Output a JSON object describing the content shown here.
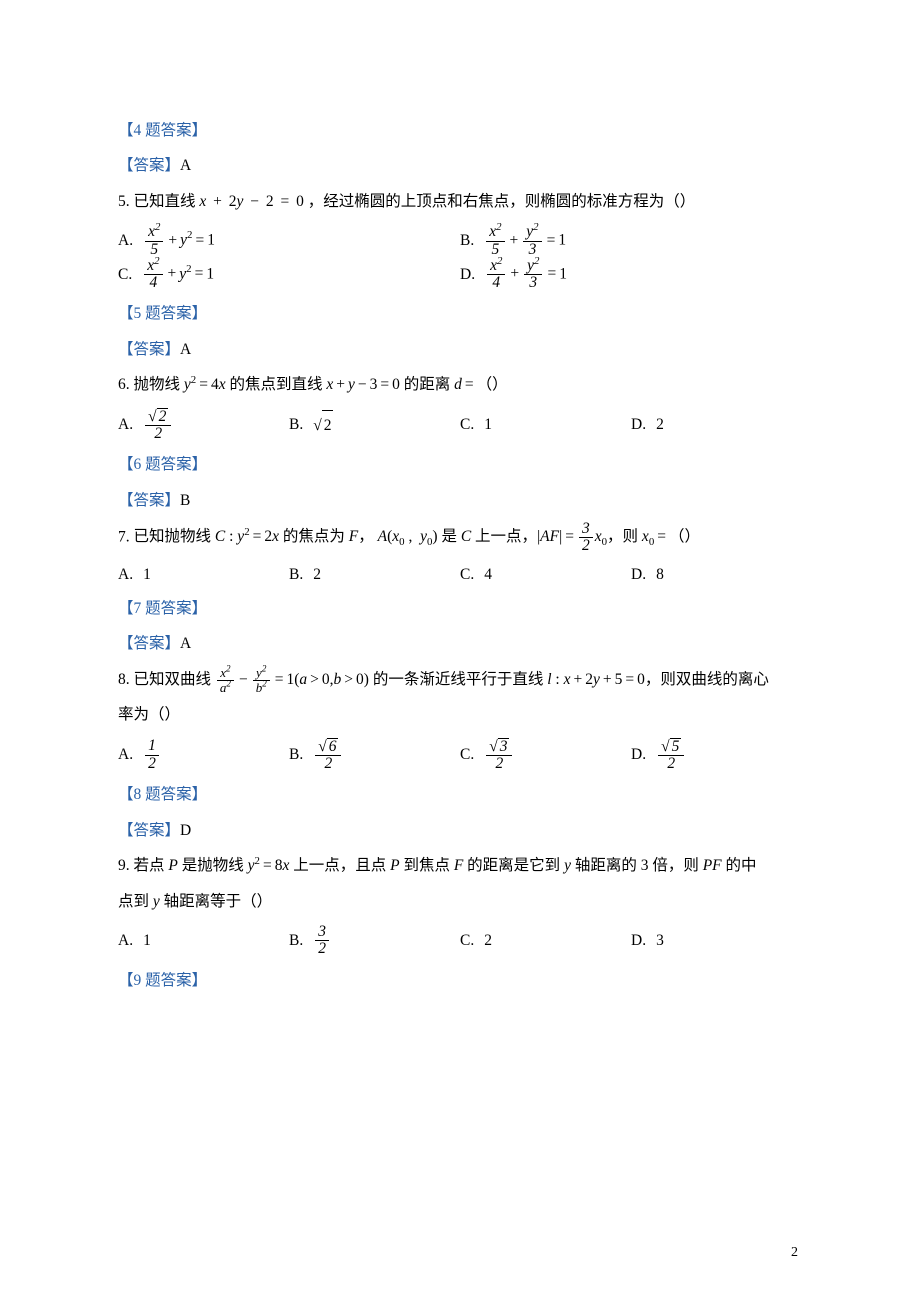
{
  "page_number": "2",
  "q4": {
    "key": "【4 题答案】",
    "ans_label": "【答案】",
    "ans": "A"
  },
  "q5": {
    "num": "5.",
    "stem": "已知直线 x + 2y − 2 = 0，经过椭圆的上顶点和右焦点，则椭圆的标准方程为（）",
    "A_label": "A.",
    "B_label": "B.",
    "C_label": "C.",
    "D_label": "D.",
    "key": "【5 题答案】",
    "ans_label": "【答案】",
    "ans": "A"
  },
  "q6": {
    "num": "6.",
    "stem_a": "抛物线 ",
    "stem_b": " 的焦点到直线 ",
    "stem_c": " 的距离 ",
    "stem_d": "（）",
    "A_label": "A.",
    "B_label": "B.",
    "C_label": "C.",
    "D_label": "D.",
    "C_val": "1",
    "D_val": "2",
    "key": "【6 题答案】",
    "ans_label": "【答案】",
    "ans": "B"
  },
  "q7": {
    "num": "7.",
    "stem_a": "已知抛物线 ",
    "stem_b": " 的焦点为 ",
    "stem_c": "， ",
    "stem_d": " 是 ",
    "stem_e": " 上一点，",
    "stem_f": "，则 ",
    "stem_g": "（）",
    "A_label": "A.",
    "A_val": "1",
    "B_label": "B.",
    "B_val": "2",
    "C_label": "C.",
    "C_val": "4",
    "D_label": "D.",
    "D_val": "8",
    "key": "【7 题答案】",
    "ans_label": "【答案】",
    "ans": "A"
  },
  "q8": {
    "num": "8.",
    "stem_a": "已知双曲线 ",
    "stem_b": " 的一条渐近线平行于直线 ",
    "stem_c": "，则双曲线的离心",
    "stem_d": "率为（）",
    "A_label": "A.",
    "B_label": "B.",
    "C_label": "C.",
    "D_label": "D.",
    "key": "【8 题答案】",
    "ans_label": "【答案】",
    "ans": "D"
  },
  "q9": {
    "num": "9.",
    "stem_a": "若点 ",
    "stem_b": " 是抛物线 ",
    "stem_c": " 上一点，且点 ",
    "stem_d": " 到焦点 ",
    "stem_e": " 的距离是它到 ",
    "stem_f": " 轴距离的 3 倍，则 ",
    "stem_g": " 的中",
    "stem_h": "点到 ",
    "stem_i": " 轴距离等于（）",
    "A_label": "A.",
    "A_val": "1",
    "B_label": "B.",
    "C_label": "C.",
    "C_val": "2",
    "D_label": "D.",
    "D_val": "3",
    "key": "【9 题答案】"
  }
}
